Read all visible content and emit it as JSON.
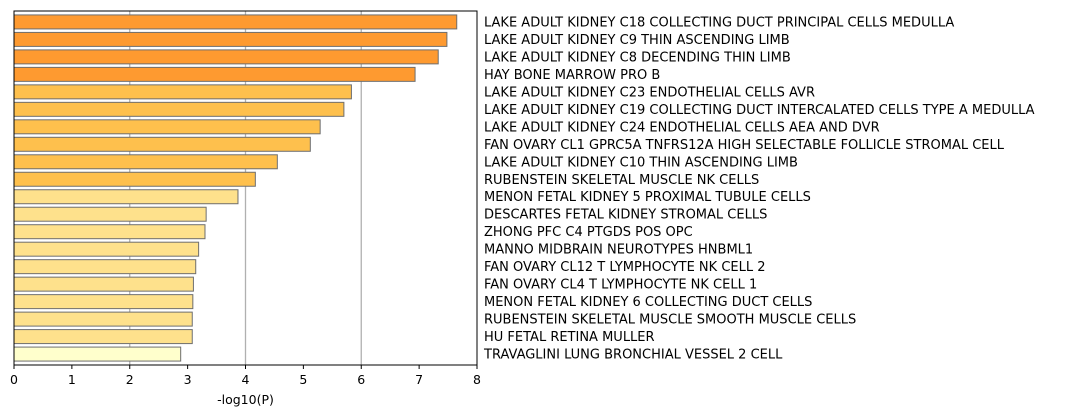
{
  "chart_data": {
    "type": "bar",
    "orientation": "horizontal",
    "categories": [
      "LAKE ADULT KIDNEY C18 COLLECTING DUCT PRINCIPAL CELLS MEDULLA",
      "LAKE ADULT KIDNEY C9 THIN ASCENDING LIMB",
      "LAKE ADULT KIDNEY C8 DECENDING THIN LIMB",
      "HAY BONE MARROW PRO B",
      "LAKE ADULT KIDNEY C23 ENDOTHELIAL CELLS AVR",
      "LAKE ADULT KIDNEY C19 COLLECTING DUCT INTERCALATED CELLS TYPE A MEDULLA",
      "LAKE ADULT KIDNEY C24 ENDOTHELIAL CELLS AEA AND DVR",
      "FAN OVARY CL1 GPRC5A TNFRS12A HIGH SELECTABLE FOLLICLE STROMAL CELL",
      "LAKE ADULT KIDNEY C10 THIN ASCENDING LIMB",
      "RUBENSTEIN SKELETAL MUSCLE NK CELLS",
      "MENON FETAL KIDNEY 5 PROXIMAL TUBULE CELLS",
      "DESCARTES FETAL KIDNEY STROMAL CELLS",
      "ZHONG PFC C4 PTGDS POS OPC",
      "MANNO MIDBRAIN NEUROTYPES HNBML1",
      "FAN OVARY CL12 T LYMPHOCYTE NK CELL 2",
      "FAN OVARY CL4 T LYMPHOCYTE NK CELL 1",
      "MENON FETAL KIDNEY 6 COLLECTING DUCT CELLS",
      "RUBENSTEIN SKELETAL MUSCLE SMOOTH MUSCLE CELLS",
      "HU FETAL RETINA MULLER",
      "TRAVAGLINI LUNG BRONCHIAL VESSEL 2 CELL"
    ],
    "values": [
      7.65,
      7.48,
      7.33,
      6.93,
      5.83,
      5.7,
      5.29,
      5.12,
      4.55,
      4.17,
      3.87,
      3.32,
      3.3,
      3.19,
      3.14,
      3.1,
      3.09,
      3.08,
      3.08,
      2.88
    ],
    "bar_colors": [
      "#fe9a30",
      "#fe9a30",
      "#fe9a30",
      "#fe9a30",
      "#fec04d",
      "#fec04d",
      "#fec04d",
      "#fec04d",
      "#fec04d",
      "#fec04d",
      "#fee18c",
      "#fee18c",
      "#fee18c",
      "#fee18c",
      "#fee18c",
      "#fee18c",
      "#fee18c",
      "#fee18c",
      "#fee18c",
      "#ffffcc"
    ],
    "bar_edge_color": "#6e6e6e",
    "xlabel": "-log10(P)",
    "ylabel": "",
    "xlim": [
      0,
      8
    ],
    "xticks": [
      0,
      1,
      2,
      3,
      4,
      5,
      6,
      7,
      8
    ],
    "grid": "vertical",
    "gridlines": [
      2,
      4,
      6
    ],
    "grid_color": "#b0b0b0",
    "legend": "none"
  }
}
